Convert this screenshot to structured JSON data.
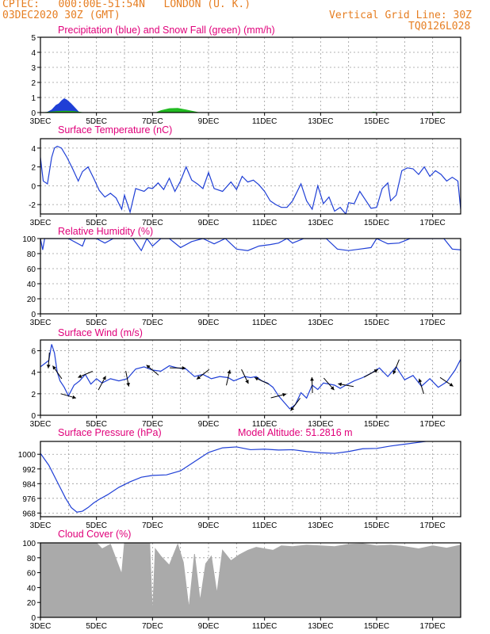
{
  "header": {
    "line1": "CPTEC:   000:00E-51:54N   LONDON (U. K.)",
    "line2": "03DEC2020 30Z (GMT)",
    "grid_note": "Vertical Grid Line: 30Z",
    "code": "TQ0126L028"
  },
  "colors": {
    "header": "#e67e22",
    "title": "#e0007a",
    "line": "#1f3fd6",
    "snow": "#22bb22",
    "cloud": "#aaaaaa",
    "grid": "#9a9a9a"
  },
  "x_ticks": [
    "3DEC",
    "5DEC",
    "7DEC",
    "9DEC",
    "11DEC",
    "13DEC",
    "15DEC",
    "17DEC"
  ],
  "x_range_days": [
    0,
    15
  ],
  "chart_data": [
    {
      "type": "area",
      "title": "Precipitation (blue) and Snow Fall (green) (mm/h)",
      "ylim": [
        0,
        5
      ],
      "yticks": [
        0,
        1,
        2,
        3,
        4,
        5
      ],
      "series": [
        {
          "color": "blue",
          "x": [
            0.2,
            0.4,
            0.55,
            0.65,
            0.75,
            0.85,
            0.95,
            1.1,
            1.25,
            1.4,
            4.8,
            5.0,
            5.1
          ],
          "y": [
            0,
            0.2,
            0.5,
            0.6,
            0.8,
            0.95,
            0.85,
            0.6,
            0.3,
            0,
            0,
            0.03,
            0
          ]
        },
        {
          "color": "green",
          "x": [
            0,
            0.3,
            0.6,
            0.9,
            1.2,
            1.4,
            1.6,
            4.1,
            4.3,
            4.6,
            4.9,
            5.2,
            5.5,
            5.7,
            11.7,
            11.9,
            12.1,
            14.0,
            14.2,
            14.4
          ],
          "y": [
            0,
            0.05,
            0.1,
            0.12,
            0.1,
            0.05,
            0,
            0,
            0.15,
            0.28,
            0.3,
            0.2,
            0.08,
            0,
            0,
            0.05,
            0,
            0,
            0.05,
            0
          ]
        }
      ]
    },
    {
      "type": "line",
      "title": "Surface Temperature (nC)",
      "ylim": [
        -3,
        5
      ],
      "yticks": [
        -2,
        0,
        2,
        4
      ],
      "x": [
        0,
        0.1,
        0.25,
        0.4,
        0.5,
        0.6,
        0.75,
        0.95,
        1.15,
        1.35,
        1.5,
        1.7,
        1.9,
        2.1,
        2.3,
        2.5,
        2.7,
        2.9,
        3.0,
        3.2,
        3.4,
        3.6,
        3.7,
        3.85,
        4.0,
        4.2,
        4.4,
        4.6,
        4.8,
        5.0,
        5.2,
        5.4,
        5.6,
        5.8,
        6.0,
        6.2,
        6.5,
        6.8,
        7.0,
        7.2,
        7.4,
        7.6,
        7.8,
        8.0,
        8.2,
        8.4,
        8.6,
        8.8,
        9.0,
        9.3,
        9.5,
        9.7,
        9.9,
        10.1,
        10.3,
        10.5,
        10.7,
        10.9,
        11.0,
        11.2,
        11.4,
        11.6,
        11.8,
        12.0,
        12.2,
        12.4,
        12.5,
        12.7,
        12.9,
        13.1,
        13.3,
        13.5,
        13.7,
        13.9,
        14.1,
        14.3,
        14.5,
        14.7,
        14.9,
        15.0
      ],
      "values": [
        3.0,
        0.5,
        0.2,
        3.0,
        4.0,
        4.2,
        4.0,
        3.0,
        1.8,
        0.5,
        1.5,
        2.0,
        0.8,
        -0.5,
        -1.2,
        -0.8,
        -1.3,
        -2.5,
        -1.0,
        -2.8,
        -0.3,
        -0.5,
        -0.6,
        -0.2,
        -0.3,
        0.3,
        -0.4,
        0.8,
        -0.6,
        0.5,
        2.0,
        0.6,
        0.2,
        -0.3,
        1.4,
        -0.3,
        -0.6,
        0.4,
        -0.4,
        1.0,
        0.4,
        0.6,
        0.1,
        -0.6,
        -1.6,
        -2.0,
        -2.3,
        -2.3,
        -1.6,
        0.2,
        -1.6,
        -2.5,
        0.0,
        -1.9,
        -1.2,
        -2.7,
        -2.3,
        -3.0,
        -1.8,
        -1.9,
        -0.6,
        -1.5,
        -2.4,
        -2.3,
        -0.3,
        0.3,
        -1.6,
        -1.0,
        1.6,
        1.9,
        1.8,
        1.2,
        2.0,
        1.0,
        1.6,
        1.2,
        0.5,
        0.9,
        0.5,
        -2.5
      ]
    },
    {
      "type": "line",
      "title": "Relative Humidity (%)",
      "ylim": [
        0,
        100
      ],
      "yticks": [
        0,
        20,
        40,
        60,
        80,
        100
      ],
      "x": [
        0,
        0.08,
        0.15,
        0.3,
        0.6,
        1.0,
        1.5,
        1.6,
        1.8,
        2.0,
        2.3,
        2.6,
        3.0,
        3.3,
        3.6,
        3.8,
        4.0,
        4.3,
        4.6,
        5.0,
        5.4,
        5.8,
        6.2,
        6.6,
        7.0,
        7.4,
        7.8,
        8.2,
        8.5,
        8.8,
        9.0,
        9.4,
        9.8,
        10.2,
        10.6,
        11.0,
        11.4,
        11.8,
        12.0,
        12.4,
        12.8,
        13.2,
        13.6,
        14.0,
        14.4,
        14.7,
        15.0
      ],
      "values": [
        100,
        85,
        100,
        100,
        100,
        100,
        90,
        100,
        100,
        100,
        94,
        100,
        100,
        100,
        84,
        100,
        90,
        100,
        100,
        88,
        96,
        100,
        93,
        100,
        86,
        84,
        90,
        92,
        94,
        100,
        94,
        100,
        100,
        100,
        86,
        84,
        86,
        88,
        100,
        93,
        94,
        100,
        100,
        100,
        100,
        86,
        85
      ]
    },
    {
      "type": "line",
      "title": "Surface Wind (m/s)",
      "ylim": [
        0,
        7
      ],
      "yticks": [
        0,
        2,
        4,
        6
      ],
      "x": [
        0,
        0.15,
        0.3,
        0.4,
        0.5,
        0.6,
        0.7,
        0.85,
        1.0,
        1.2,
        1.4,
        1.6,
        1.8,
        2.0,
        2.2,
        2.5,
        2.8,
        3.1,
        3.4,
        3.7,
        4.0,
        4.3,
        4.6,
        4.9,
        5.2,
        5.5,
        5.8,
        6.1,
        6.4,
        6.7,
        6.9,
        7.1,
        7.3,
        7.5,
        7.7,
        7.9,
        8.1,
        8.3,
        8.5,
        8.7,
        8.9,
        9.1,
        9.3,
        9.5,
        9.7,
        9.9,
        10.1,
        10.3,
        10.5,
        10.7,
        10.9,
        11.2,
        11.5,
        11.8,
        12.1,
        12.4,
        12.7,
        13.0,
        13.3,
        13.6,
        13.9,
        14.2,
        14.5,
        14.8,
        15.0
      ],
      "values": [
        4.5,
        4.8,
        5.1,
        6.6,
        5.8,
        4.0,
        3.2,
        2.6,
        1.8,
        2.8,
        3.2,
        3.8,
        2.9,
        3.4,
        3.0,
        3.4,
        3.2,
        3.4,
        4.3,
        4.5,
        4.2,
        4.1,
        4.6,
        4.4,
        4.3,
        3.6,
        3.8,
        3.4,
        3.6,
        3.5,
        3.2,
        3.4,
        3.6,
        3.5,
        3.6,
        3.2,
        3.0,
        2.6,
        1.8,
        1.2,
        0.6,
        1.0,
        2.1,
        1.6,
        2.8,
        2.4,
        3.0,
        2.9,
        2.8,
        2.5,
        2.8,
        3.2,
        3.5,
        3.9,
        4.4,
        3.6,
        4.5,
        3.3,
        3.7,
        2.7,
        3.4,
        2.6,
        3.1,
        4.2,
        5.2
      ]
    },
    {
      "type": "line",
      "title": "Surface Pressure (hPa)",
      "subtitle": "Model Altitude: 51.2816 m",
      "ylim": [
        966,
        1007
      ],
      "yticks": [
        968,
        976,
        984,
        992,
        1000
      ],
      "x": [
        0,
        0.3,
        0.6,
        0.9,
        1.1,
        1.3,
        1.5,
        1.7,
        1.9,
        2.1,
        2.4,
        2.8,
        3.2,
        3.6,
        4.0,
        4.5,
        5.0,
        5.5,
        6.0,
        6.5,
        7.0,
        7.5,
        8.0,
        8.5,
        9.0,
        9.5,
        10.0,
        10.5,
        11.0,
        11.5,
        12.0,
        12.5,
        13.0,
        13.5,
        14.0,
        14.5,
        15.0
      ],
      "values": [
        1000.5,
        994,
        985,
        976,
        971,
        968.5,
        969,
        971,
        973.5,
        975.5,
        978,
        982,
        985,
        987.5,
        988.5,
        988.8,
        991,
        996,
        1001,
        1003.5,
        1004,
        1002.5,
        1002.8,
        1002.3,
        1002.5,
        1001.5,
        1000.8,
        1000.5,
        1001.5,
        1003,
        1003.2,
        1004.5,
        1005.5,
        1006.5,
        1007.5,
        1008.5,
        1009
      ]
    },
    {
      "type": "area",
      "title": "Cloud Cover (%)",
      "ylim": [
        0,
        100
      ],
      "yticks": [
        0,
        20,
        40,
        60,
        80,
        100
      ],
      "x": [
        0,
        0.5,
        1.0,
        1.5,
        1.8,
        2.0,
        2.2,
        2.5,
        2.9,
        3.0,
        3.2,
        3.5,
        3.9,
        4.0,
        4.1,
        4.3,
        4.6,
        4.9,
        5.1,
        5.3,
        5.5,
        5.7,
        5.9,
        6.1,
        6.3,
        6.5,
        6.8,
        7.1,
        7.4,
        7.7,
        8.0,
        8.3,
        8.6,
        9.0,
        9.5,
        10.0,
        10.5,
        11.0,
        11.5,
        12.0,
        12.5,
        13.0,
        13.5,
        14.0,
        14.5,
        15.0
      ],
      "values": [
        100,
        100,
        100,
        100,
        100,
        100,
        92,
        98,
        58,
        100,
        100,
        100,
        100,
        2,
        92,
        82,
        70,
        98,
        74,
        12,
        85,
        22,
        72,
        82,
        32,
        90,
        76,
        84,
        90,
        94,
        92,
        90,
        96,
        95,
        97,
        96,
        95,
        98,
        99,
        96,
        97,
        95,
        92,
        96,
        93,
        97
      ]
    }
  ]
}
